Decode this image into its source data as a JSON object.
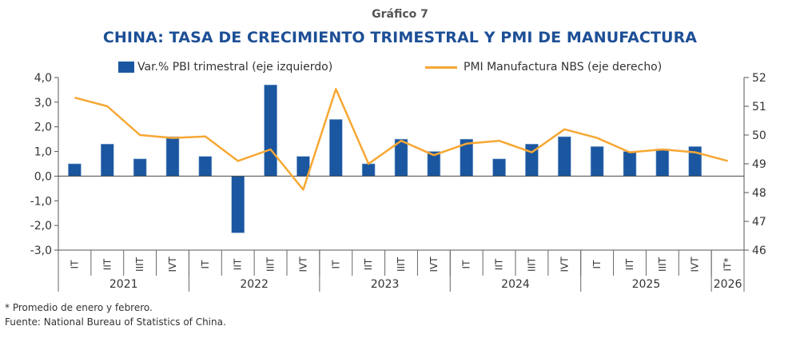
{
  "header": {
    "subtitle": "Gráfico 7",
    "title": "CHINA: TASA DE CRECIMIENTO TRIMESTRAL Y PMI DE MANUFACTURA"
  },
  "footnotes": {
    "note": "* Promedio de enero y febrero.",
    "source": "Fuente: National Bureau of Statistics of China."
  },
  "chart_data": {
    "type": "bar",
    "title": "CHINA: TASA DE CRECIMIENTO TRIMESTRAL Y PMI DE MANUFACTURA",
    "legend_position": "top",
    "categories": [
      "IT",
      "IIT",
      "IIIT",
      "IVT",
      "IT",
      "IIT",
      "IIIT",
      "IVT",
      "IT",
      "IIT",
      "IIIT",
      "IVT",
      "IT",
      "IIT",
      "IIIT",
      "IVT",
      "IT",
      "IIT",
      "IIIT",
      "IVT",
      "IT*"
    ],
    "years": [
      {
        "label": "2021",
        "quarters": 4
      },
      {
        "label": "2022",
        "quarters": 4
      },
      {
        "label": "2023",
        "quarters": 4
      },
      {
        "label": "2024",
        "quarters": 4
      },
      {
        "label": "2025",
        "quarters": 4
      },
      {
        "label": "2026",
        "quarters": 1
      }
    ],
    "left_axis": {
      "range": [
        -3,
        4
      ],
      "ticks": [
        "4,0",
        "3,0",
        "2,0",
        "1,0",
        "0,0",
        "-1,0",
        "-2,0",
        "-3,0"
      ],
      "tick_values": [
        4,
        3,
        2,
        1,
        0,
        -1,
        -2,
        -3
      ]
    },
    "right_axis": {
      "range": [
        46,
        52
      ],
      "ticks": [
        "52",
        "51",
        "50",
        "49",
        "48",
        "47",
        "46"
      ],
      "tick_values": [
        52,
        51,
        50,
        49,
        48,
        47,
        46
      ]
    },
    "series": [
      {
        "name": "Var.% PBI trimestral (eje izquierdo)",
        "type": "bar",
        "axis": "left",
        "color": "#1b57a0",
        "values": [
          0.5,
          1.3,
          0.7,
          1.6,
          0.8,
          -2.3,
          3.7,
          0.8,
          2.3,
          0.5,
          1.5,
          1.0,
          1.5,
          0.7,
          1.3,
          1.6,
          1.2,
          1.0,
          1.1,
          1.2,
          null
        ]
      },
      {
        "name": "PMI Manufactura NBS (eje derecho)",
        "type": "line",
        "axis": "right",
        "color": "#f7a733",
        "values": [
          51.3,
          51.0,
          50.0,
          49.9,
          49.95,
          49.1,
          49.5,
          48.1,
          51.6,
          49.0,
          49.8,
          49.3,
          49.7,
          49.8,
          49.4,
          50.2,
          49.9,
          49.4,
          49.5,
          49.4,
          49.1
        ]
      }
    ]
  }
}
